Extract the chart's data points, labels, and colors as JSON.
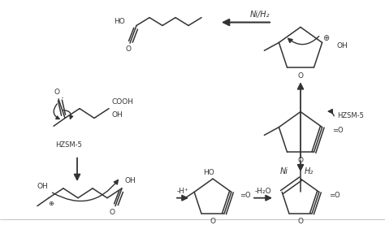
{
  "bg_color": "#ffffff",
  "line_color": "#333333",
  "figsize": [
    4.74,
    2.77
  ],
  "dpi": 100,
  "labels": {
    "ni_h2_top": "Ni/H₂",
    "hzsm5_right": "HZSM-5",
    "hzsm5_left": "HZSM-5",
    "ni_h2_bottom": "Ni",
    "h2_bottom": "H₂",
    "minus_h": "-H⁺",
    "minus_h2o": "-H₂O"
  }
}
